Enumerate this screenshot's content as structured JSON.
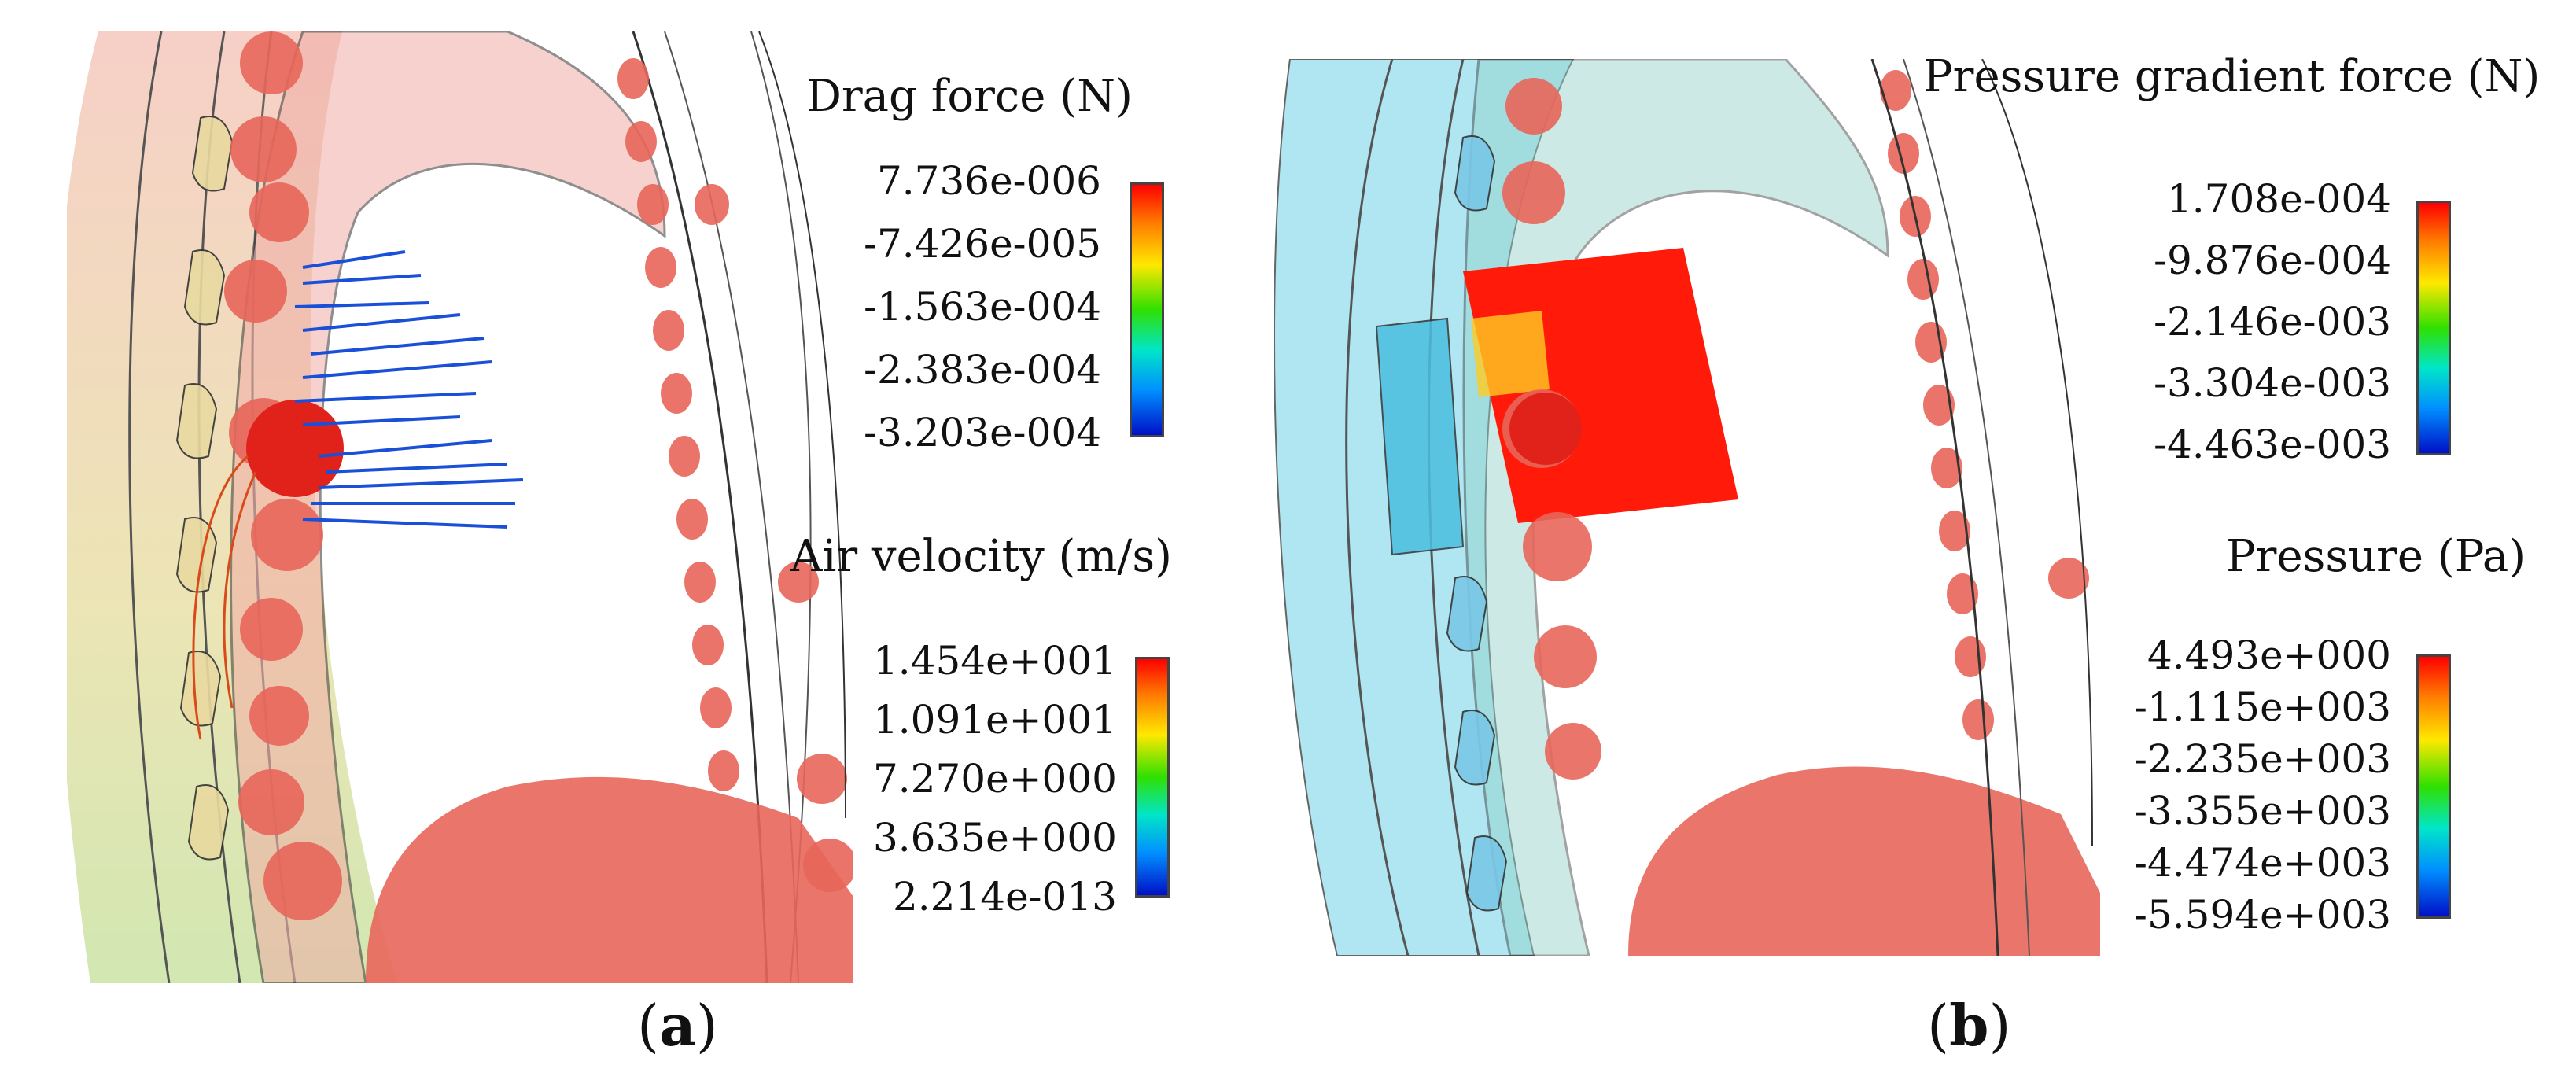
{
  "panel_a": {
    "caption_open": "(",
    "caption_letter": "a",
    "caption_close": ")",
    "legend_top": {
      "title": "Drag force (N)",
      "ticks": [
        "7.736e-006",
        "-7.426e-005",
        "-1.563e-004",
        "-2.383e-004",
        "-3.203e-004"
      ]
    },
    "legend_bottom": {
      "title": "Air velocity (m/s)",
      "ticks": [
        "1.454e+001",
        "1.091e+001",
        "7.270e+000",
        "3.635e+000",
        "2.214e-013"
      ]
    }
  },
  "panel_b": {
    "caption_open": "(",
    "caption_letter": "b",
    "caption_close": ")",
    "legend_top": {
      "title": "Pressure gradient force (N)",
      "ticks": [
        "1.708e-004",
        "-9.876e-004",
        "-2.146e-003",
        "-3.304e-003",
        "-4.463e-003"
      ]
    },
    "legend_bottom": {
      "title": "Pressure (Pa)",
      "ticks": [
        "4.493e+000",
        "-1.115e+003",
        "-2.235e+003",
        "-3.355e+003",
        "-4.474e+003",
        "-5.594e+003"
      ]
    }
  },
  "colors": {
    "particle": "#e8665a",
    "streamline": "#1a4fd8",
    "pressure_box": "#ff1a0a",
    "cyan_shell": "#a8e4f0",
    "pink_shell": "#f2c8c0"
  }
}
